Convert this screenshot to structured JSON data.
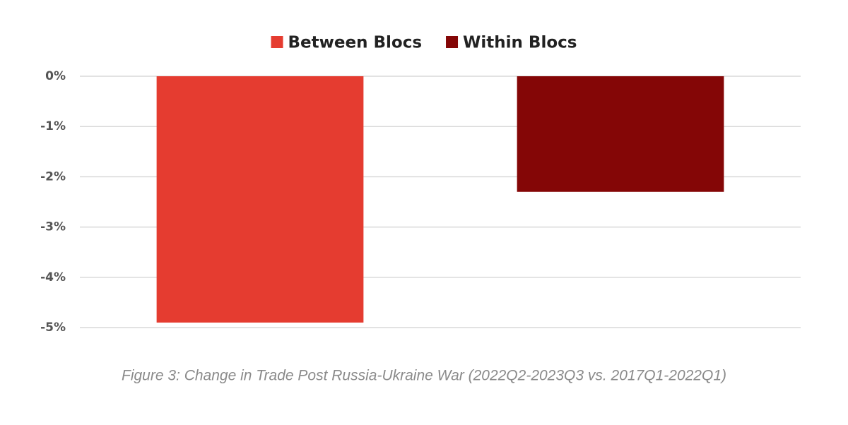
{
  "chart_data": {
    "type": "bar",
    "caption": "Figure 3: Change in Trade Post Russia-Ukraine War (2022Q2-2023Q3 vs. 2017Q1-2022Q1)",
    "categories": [
      null
    ],
    "series": [
      {
        "name": "Between Blocs",
        "color": "#e53c30",
        "values": [
          -4.9
        ]
      },
      {
        "name": "Within Blocs",
        "color": "#840606",
        "values": [
          -2.3
        ]
      }
    ],
    "ylim": [
      -5,
      0
    ],
    "yticks": [
      {
        "value": 0,
        "label": "0%"
      },
      {
        "value": -1,
        "label": "-1%"
      },
      {
        "value": -2,
        "label": "-2%"
      },
      {
        "value": -3,
        "label": "-3%"
      },
      {
        "value": -4,
        "label": "-4%"
      },
      {
        "value": -5,
        "label": "-5%"
      }
    ],
    "grid": true,
    "legend": "top"
  }
}
